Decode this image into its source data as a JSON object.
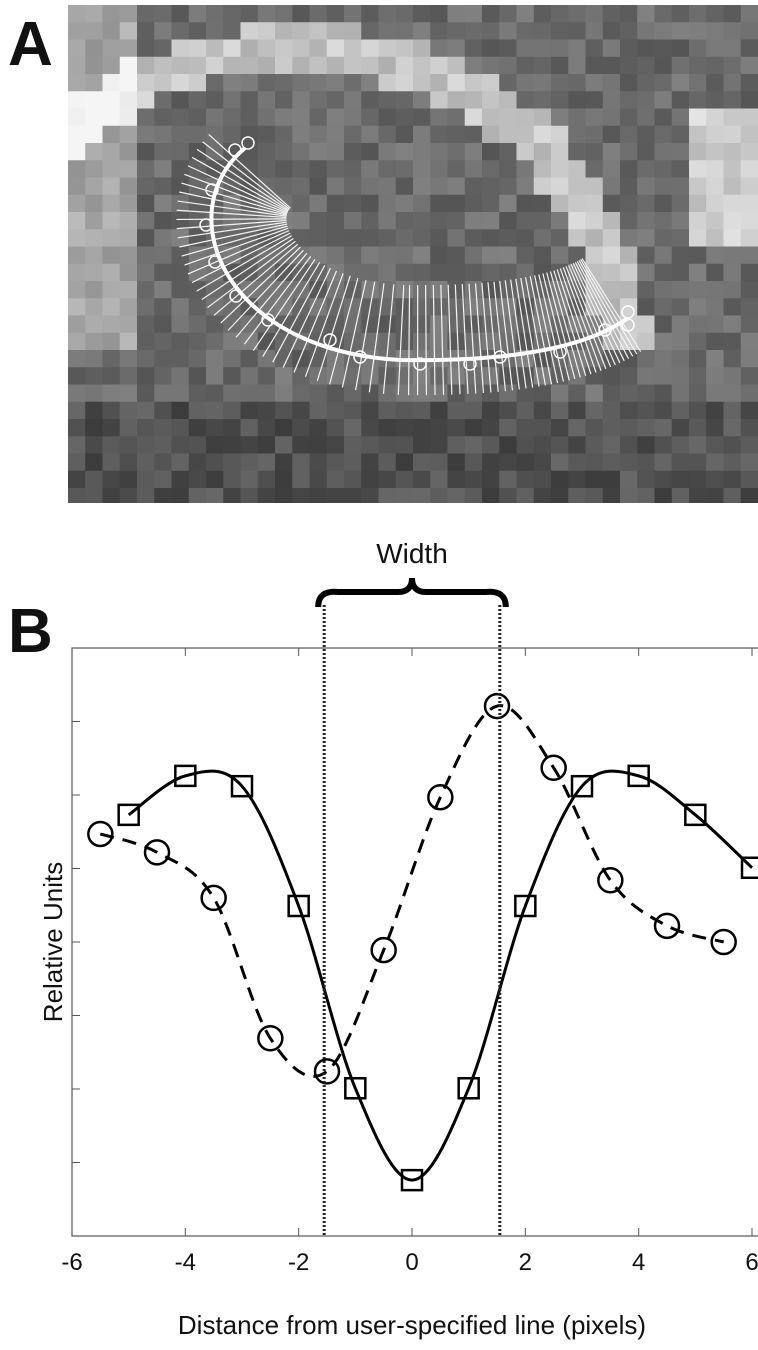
{
  "panel_labels": [
    "A",
    "B"
  ],
  "chart_data": {
    "type": "line",
    "xlabel": "Distance from user-specified line (pixels)",
    "ylabel": "Relative Units",
    "xlim": [
      -6,
      6
    ],
    "xticks": [
      -6,
      -4,
      -2,
      0,
      2,
      4,
      6
    ],
    "ylim": [
      0,
      8
    ],
    "yticks": [
      1,
      2,
      3,
      4,
      5,
      6,
      7
    ],
    "series": [
      {
        "marker": "square",
        "dash": "solid",
        "color": "#000000",
        "x": [
          -5,
          -4,
          -3,
          -2,
          -1,
          0,
          1,
          2,
          3,
          4,
          5,
          6
        ],
        "values": [
          5.73,
          6.26,
          6.12,
          4.49,
          2.01,
          0.76,
          2.01,
          4.49,
          6.12,
          6.26,
          5.73,
          5.01
        ]
      },
      {
        "marker": "circle",
        "dash": "dashed",
        "color": "#000000",
        "x": [
          -5.5,
          -4.5,
          -3.5,
          -2.5,
          -1.5,
          -0.5,
          0.5,
          1.5,
          2.5,
          3.5,
          4.5,
          5.5
        ],
        "values": [
          5.47,
          5.22,
          4.6,
          2.69,
          2.24,
          3.89,
          5.97,
          7.21,
          6.37,
          4.84,
          4.22,
          4.0
        ]
      }
    ],
    "width_annotation": {
      "label": "Width",
      "x": [
        -1.55,
        1.55
      ]
    }
  }
}
